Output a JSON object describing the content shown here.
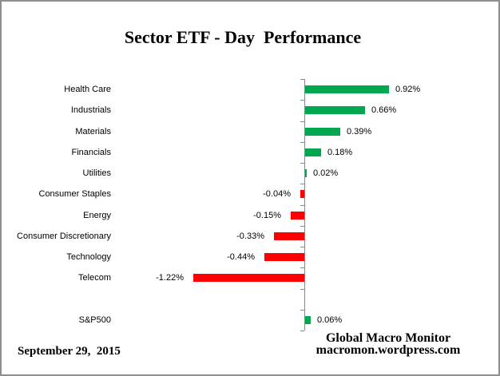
{
  "chart_data": {
    "type": "bar",
    "orientation": "horizontal",
    "title": "Sector ETF - Day  Performance",
    "categories": [
      "Health Care",
      "Industrials",
      "Materials",
      "Financials",
      "Utilities",
      "Consumer Staples",
      "Energy",
      "Consumer Discretionary",
      "Technology",
      "Telecom",
      "S&P500"
    ],
    "values": [
      0.92,
      0.66,
      0.39,
      0.18,
      0.02,
      -0.04,
      -0.15,
      -0.33,
      -0.44,
      -1.22,
      0.06
    ],
    "labels": [
      "0.92%",
      "0.66%",
      "0.39%",
      "0.18%",
      "0.02%",
      "-0.04%",
      "-0.15%",
      "-0.33%",
      "-0.44%",
      "-1.22%",
      "0.06%"
    ],
    "gap_before_index": 10,
    "xlim": [
      -1.45,
      1.1
    ],
    "grid": false,
    "legend": "none",
    "positive_color": "#00A650",
    "negative_color": "#FF0000",
    "axis_color": "#898989"
  },
  "footer": {
    "date": "September 29,  2015",
    "source_line1": "Global Macro Monitor",
    "source_line2": "macromon.wordpress.com"
  }
}
